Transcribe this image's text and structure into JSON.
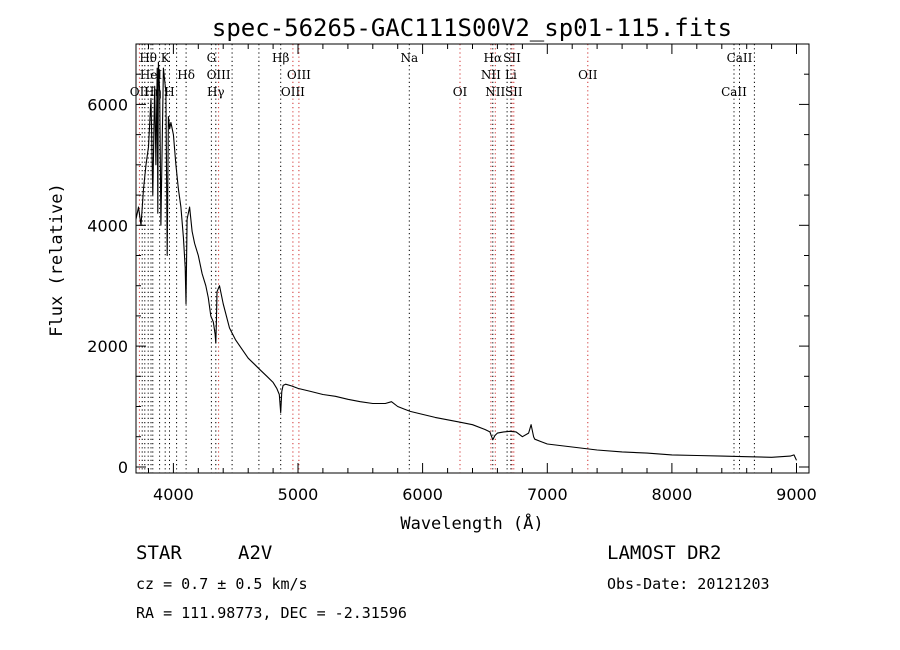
{
  "chart_data": {
    "type": "line",
    "title": "spec-56265-GAC111S00V2_sp01-115.fits",
    "xlabel": "Wavelength (Å)",
    "ylabel": "Flux (relative)",
    "xlim": [
      3700,
      9100
    ],
    "ylim": [
      -100,
      7000
    ],
    "x_ticks": [
      4000,
      5000,
      6000,
      7000,
      8000,
      9000
    ],
    "y_ticks": [
      0,
      2000,
      4000,
      6000
    ],
    "x_tick_labels": [
      "4000",
      "5000",
      "6000",
      "7000",
      "8000",
      "9000"
    ],
    "y_tick_labels": [
      "0",
      "2000",
      "4000",
      "6000"
    ],
    "grid": false,
    "series": [
      {
        "color": "#000000",
        "x": [
          3700,
          3720,
          3740,
          3760,
          3780,
          3800,
          3820,
          3835,
          3850,
          3860,
          3870,
          3875,
          3880,
          3890,
          3900,
          3920,
          3940,
          3950,
          3960,
          3970,
          3980,
          4000,
          4020,
          4040,
          4060,
          4080,
          4095,
          4101,
          4110,
          4130,
          4150,
          4170,
          4200,
          4230,
          4260,
          4280,
          4300,
          4320,
          4335,
          4340,
          4345,
          4350,
          4370,
          4400,
          4450,
          4500,
          4550,
          4600,
          4650,
          4700,
          4750,
          4800,
          4830,
          4850,
          4861,
          4870,
          4880,
          4900,
          4950,
          5000,
          5100,
          5200,
          5300,
          5400,
          5500,
          5600,
          5700,
          5750,
          5800,
          5850,
          5900,
          6000,
          6100,
          6200,
          6300,
          6400,
          6500,
          6540,
          6563,
          6580,
          6600,
          6650,
          6700,
          6750,
          6800,
          6850,
          6870,
          6890,
          6900,
          6950,
          7000,
          7200,
          7400,
          7600,
          7800,
          8000,
          8200,
          8400,
          8600,
          8800,
          8950,
          8980,
          9000
        ],
        "values": [
          4100,
          4300,
          4000,
          4600,
          5000,
          5300,
          6100,
          4500,
          6300,
          5000,
          6600,
          4200,
          6700,
          6200,
          4000,
          6600,
          6200,
          3500,
          5800,
          5600,
          5700,
          5500,
          5000,
          4600,
          4300,
          3800,
          3300,
          2700,
          4100,
          4300,
          3900,
          3700,
          3500,
          3200,
          3000,
          2800,
          2500,
          2400,
          2200,
          2050,
          2400,
          2900,
          3000,
          2700,
          2300,
          2100,
          1950,
          1800,
          1700,
          1600,
          1500,
          1400,
          1300,
          1200,
          900,
          1250,
          1350,
          1370,
          1340,
          1300,
          1250,
          1200,
          1170,
          1120,
          1080,
          1050,
          1050,
          1080,
          1000,
          960,
          920,
          870,
          820,
          780,
          740,
          700,
          620,
          580,
          450,
          520,
          560,
          580,
          590,
          580,
          500,
          560,
          700,
          500,
          460,
          420,
          380,
          330,
          280,
          250,
          230,
          200,
          190,
          180,
          170,
          160,
          180,
          200,
          110
        ]
      }
    ],
    "line_markers": [
      {
        "name": "OII",
        "x": 3727,
        "color": "red",
        "row": 4
      },
      {
        "name": "Hθ",
        "x": 3798,
        "color": "black",
        "row": 1
      },
      {
        "name": "HeI",
        "x": 3820,
        "color": "black",
        "row": 2
      },
      {
        "name": "Hη",
        "x": 3835,
        "color": "black",
        "row": 4
      },
      {
        "name": "K",
        "x": 3934,
        "color": "black",
        "row": 1
      },
      {
        "name": "H",
        "x": 3969,
        "color": "black",
        "row": 4
      },
      {
        "name": "Hδ",
        "x": 4102,
        "color": "black",
        "row": 2
      },
      {
        "name": "G",
        "x": 4305,
        "color": "black",
        "row": 1
      },
      {
        "name": "OIII",
        "x": 4363,
        "color": "red",
        "row": 2
      },
      {
        "name": "Hγ",
        "x": 4340,
        "color": "black",
        "row": 4
      },
      {
        "name": "Hβ",
        "x": 4861,
        "color": "black",
        "row": 1
      },
      {
        "name": "OIII",
        "x": 4959,
        "color": "red",
        "row": 4
      },
      {
        "name": "OIII",
        "x": 5007,
        "color": "red",
        "row": 2
      },
      {
        "name": "Na",
        "x": 5893,
        "color": "black",
        "row": 1
      },
      {
        "name": "OI",
        "x": 6300,
        "color": "red",
        "row": 4
      },
      {
        "name": "Hα",
        "x": 6563,
        "color": "black",
        "row": 1
      },
      {
        "name": "SII",
        "x": 6717,
        "color": "red",
        "row": 1
      },
      {
        "name": "NII",
        "x": 6548,
        "color": "red",
        "row": 2
      },
      {
        "name": "Li",
        "x": 6708,
        "color": "black",
        "row": 2
      },
      {
        "name": "NII",
        "x": 6583,
        "color": "red",
        "row": 4
      },
      {
        "name": "SII",
        "x": 6731,
        "color": "red",
        "row": 4
      },
      {
        "name": "OII",
        "x": 7325,
        "color": "red",
        "row": 2
      },
      {
        "name": "CaII",
        "x": 8542,
        "color": "black",
        "row": 1
      },
      {
        "name": "CaII",
        "x": 8498,
        "color": "black",
        "row": 4
      }
    ],
    "extra_marker_lines": [
      {
        "x": 3750,
        "color": "black"
      },
      {
        "x": 3771,
        "color": "black"
      },
      {
        "x": 3889,
        "color": "black"
      },
      {
        "x": 4026,
        "color": "black"
      },
      {
        "x": 4471,
        "color": "black"
      },
      {
        "x": 4686,
        "color": "black"
      },
      {
        "x": 6678,
        "color": "black"
      },
      {
        "x": 8662,
        "color": "black"
      }
    ]
  },
  "info": {
    "object_type": "STAR",
    "subclass": "A2V",
    "survey": "LAMOST DR2",
    "cz": "cz = 0.7 ± 0.5 km/s",
    "obs_date": "Obs-Date: 20121203",
    "coords": "RA = 111.98773, DEC =  -2.31596"
  }
}
